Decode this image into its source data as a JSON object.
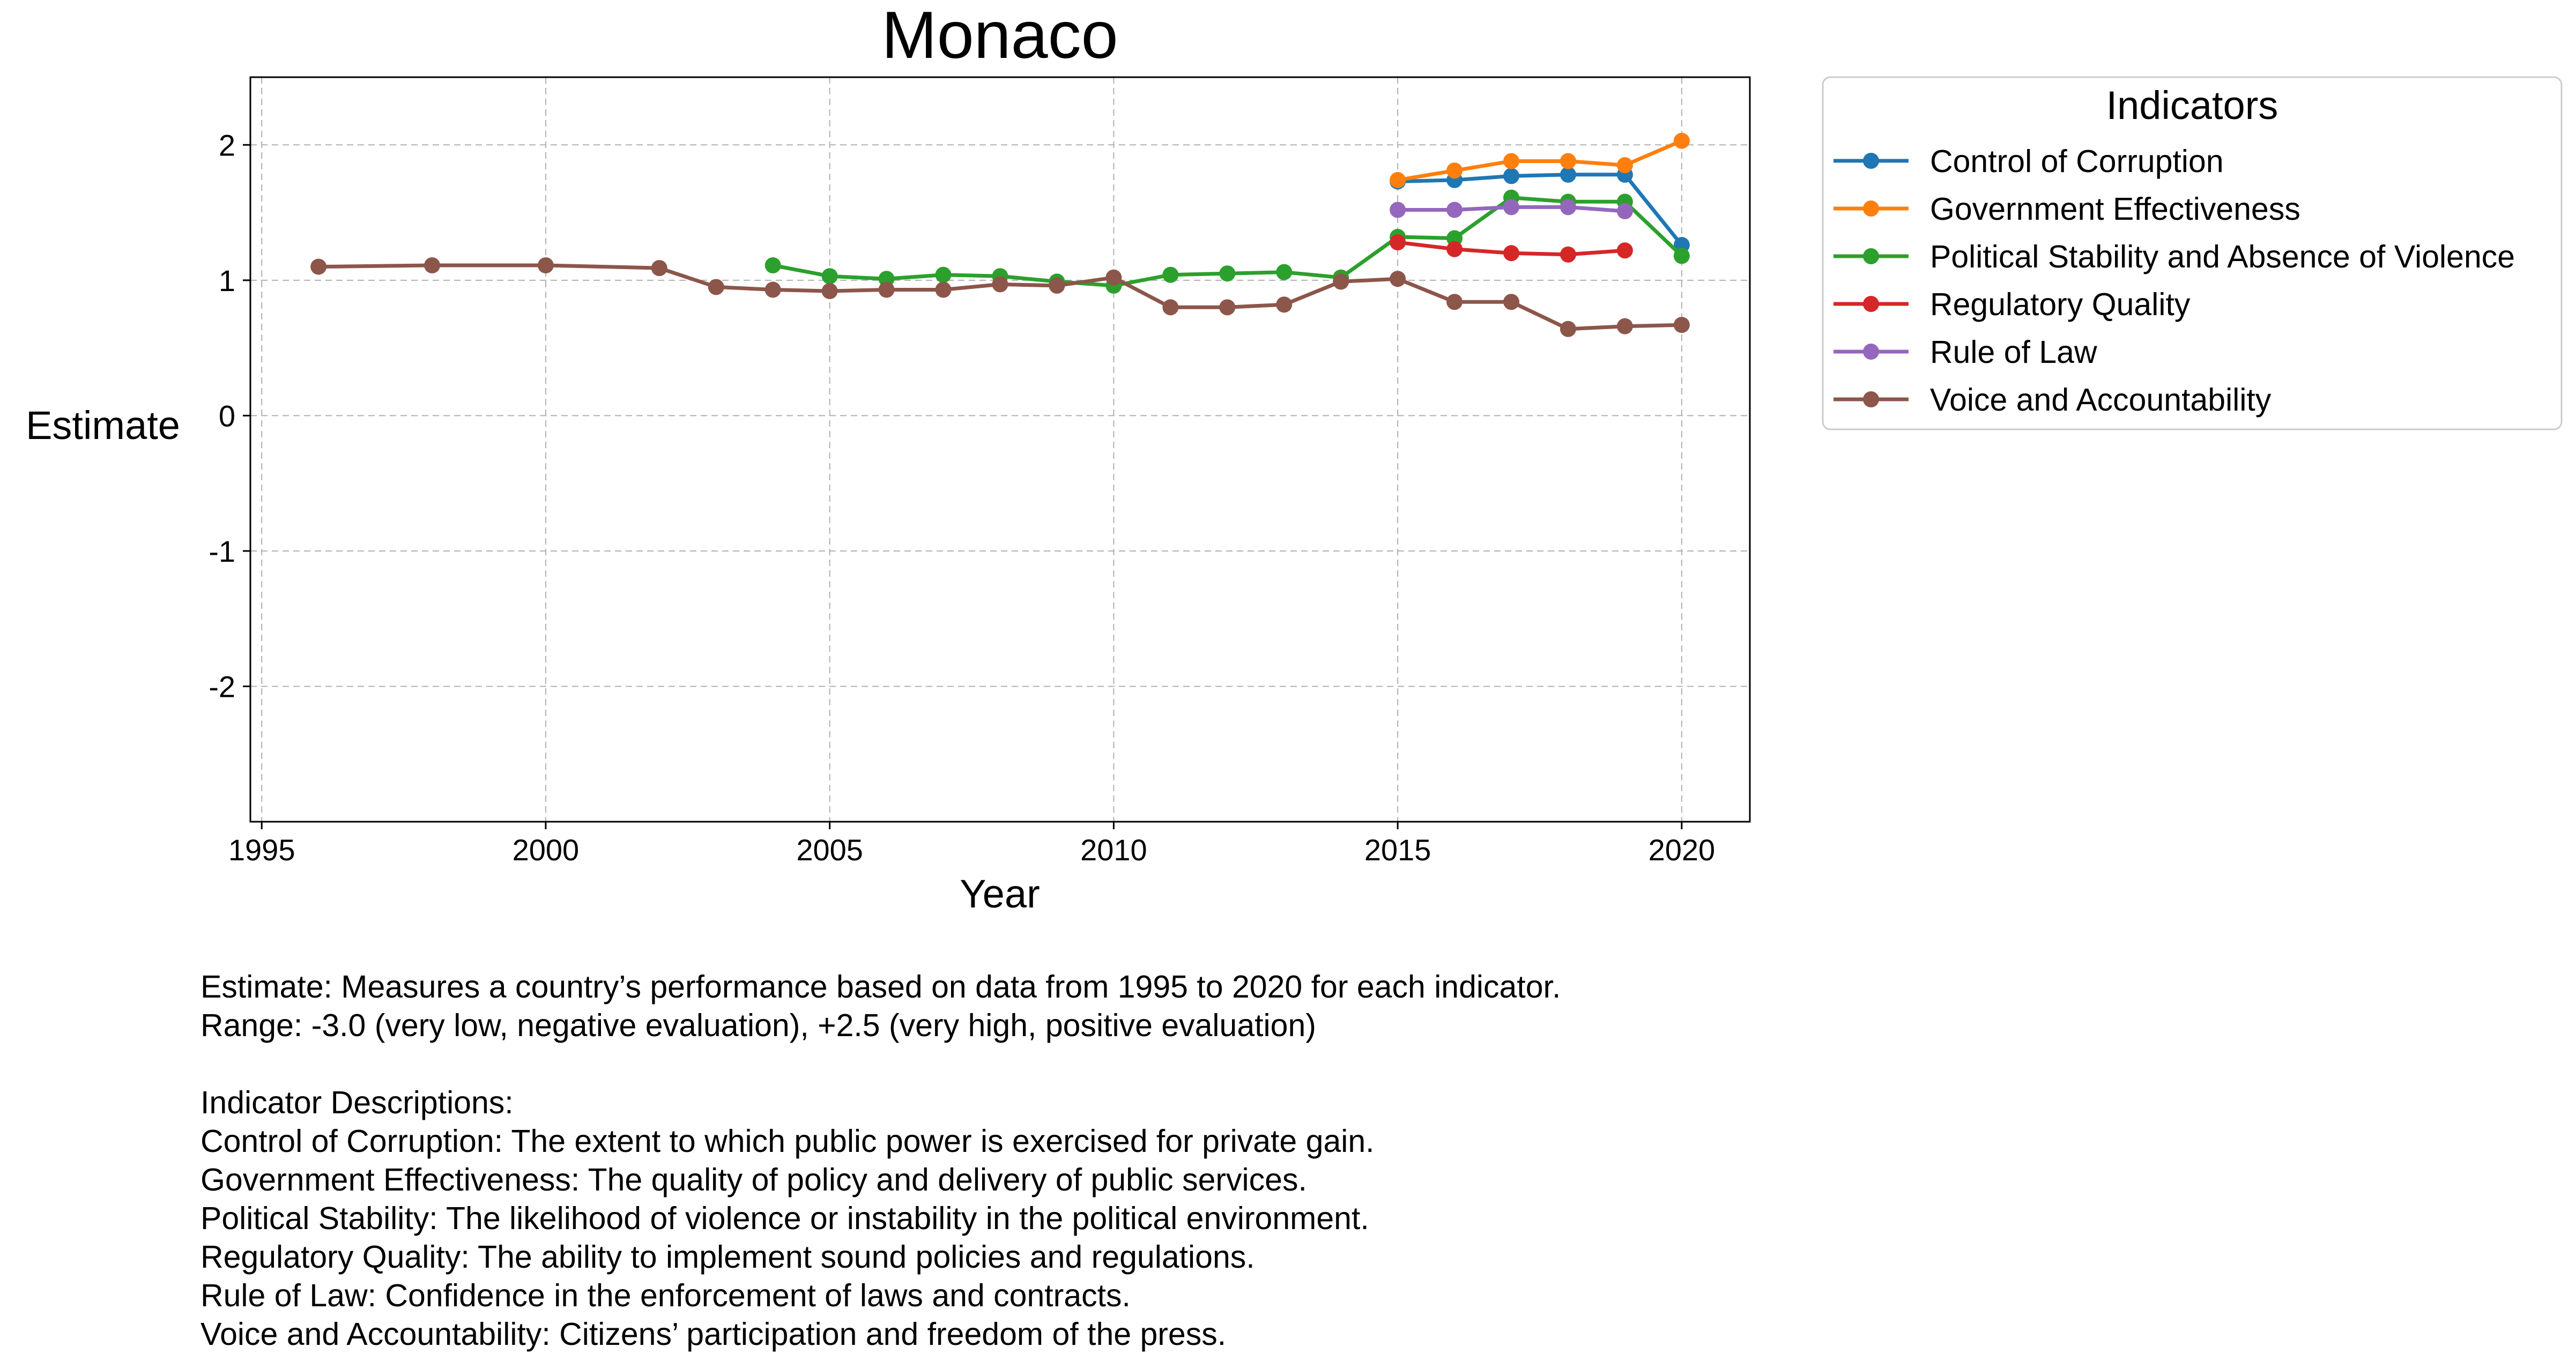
{
  "chart_data": {
    "type": "line",
    "title": "Monaco",
    "xlabel": "Year",
    "ylabel": "Estimate",
    "xlim": [
      1994.8,
      2021.2
    ],
    "ylim": [
      -3.0,
      2.5
    ],
    "x_ticks": [
      1995,
      2000,
      2005,
      2010,
      2015,
      2020
    ],
    "x_tick_labels": [
      "1995",
      "2000",
      "2005",
      "2010",
      "2015",
      "2020"
    ],
    "y_ticks": [
      -2,
      -1,
      0,
      1,
      2
    ],
    "y_tick_labels": [
      "-2",
      "-1",
      "0",
      "1",
      "2"
    ],
    "grid": true,
    "legend": {
      "title": "Indicators",
      "placement": "outside-top-right"
    },
    "series": [
      {
        "name": "Control of Corruption",
        "color": "#1f77b4",
        "x": [
          2015,
          2016,
          2017,
          2018,
          2019,
          2020
        ],
        "y": [
          1.73,
          1.74,
          1.77,
          1.78,
          1.78,
          1.26
        ]
      },
      {
        "name": "Government Effectiveness",
        "color": "#ff7f0e",
        "x": [
          2015,
          2016,
          2017,
          2018,
          2019,
          2020
        ],
        "y": [
          1.74,
          1.81,
          1.88,
          1.88,
          1.85,
          2.03
        ]
      },
      {
        "name": "Political Stability and Absence of Violence",
        "color": "#2ca02c",
        "x": [
          2004,
          2005,
          2006,
          2007,
          2008,
          2009,
          2010,
          2011,
          2012,
          2013,
          2014,
          2015,
          2016,
          2017,
          2018,
          2019,
          2020
        ],
        "y": [
          1.11,
          1.03,
          1.01,
          1.04,
          1.03,
          0.99,
          0.96,
          1.04,
          1.05,
          1.06,
          1.02,
          1.32,
          1.31,
          1.61,
          1.58,
          1.58,
          1.18
        ]
      },
      {
        "name": "Regulatory Quality",
        "color": "#d62728",
        "x": [
          2015,
          2016,
          2017,
          2018,
          2019
        ],
        "y": [
          1.28,
          1.23,
          1.2,
          1.19,
          1.22
        ]
      },
      {
        "name": "Rule of Law",
        "color": "#9467bd",
        "x": [
          2015,
          2016,
          2017,
          2018,
          2019
        ],
        "y": [
          1.52,
          1.52,
          1.54,
          1.54,
          1.51
        ]
      },
      {
        "name": "Voice and Accountability",
        "color": "#8c564b",
        "x": [
          1996,
          1998,
          2000,
          2002,
          2003,
          2004,
          2005,
          2006,
          2007,
          2008,
          2009,
          2010,
          2011,
          2012,
          2013,
          2014,
          2015,
          2016,
          2017,
          2018,
          2019,
          2020
        ],
        "y": [
          1.1,
          1.11,
          1.11,
          1.09,
          0.95,
          0.93,
          0.92,
          0.93,
          0.93,
          0.97,
          0.96,
          1.02,
          0.8,
          0.8,
          0.82,
          0.99,
          1.01,
          0.84,
          0.84,
          0.64,
          0.66,
          0.67
        ]
      }
    ]
  },
  "notes": {
    "estimate_line": "Estimate: Measures a country’s performance based on data from 1995 to 2020 for each indicator.",
    "range_line": "Range: -3.0 (very low, negative evaluation), +2.5 (very high, positive evaluation)",
    "descriptions_heading": "Indicator Descriptions:",
    "descriptions": [
      "Control of Corruption: The extent to which public power is exercised for private gain.",
      "Government Effectiveness: The quality of policy and delivery of public services.",
      "Political Stability: The likelihood of violence or instability in the political environment.",
      "Regulatory Quality: The ability to implement sound policies and regulations.",
      "Rule of Law: Confidence in the enforcement of laws and contracts.",
      "Voice and Accountability: Citizens’ participation and freedom of the press."
    ]
  }
}
